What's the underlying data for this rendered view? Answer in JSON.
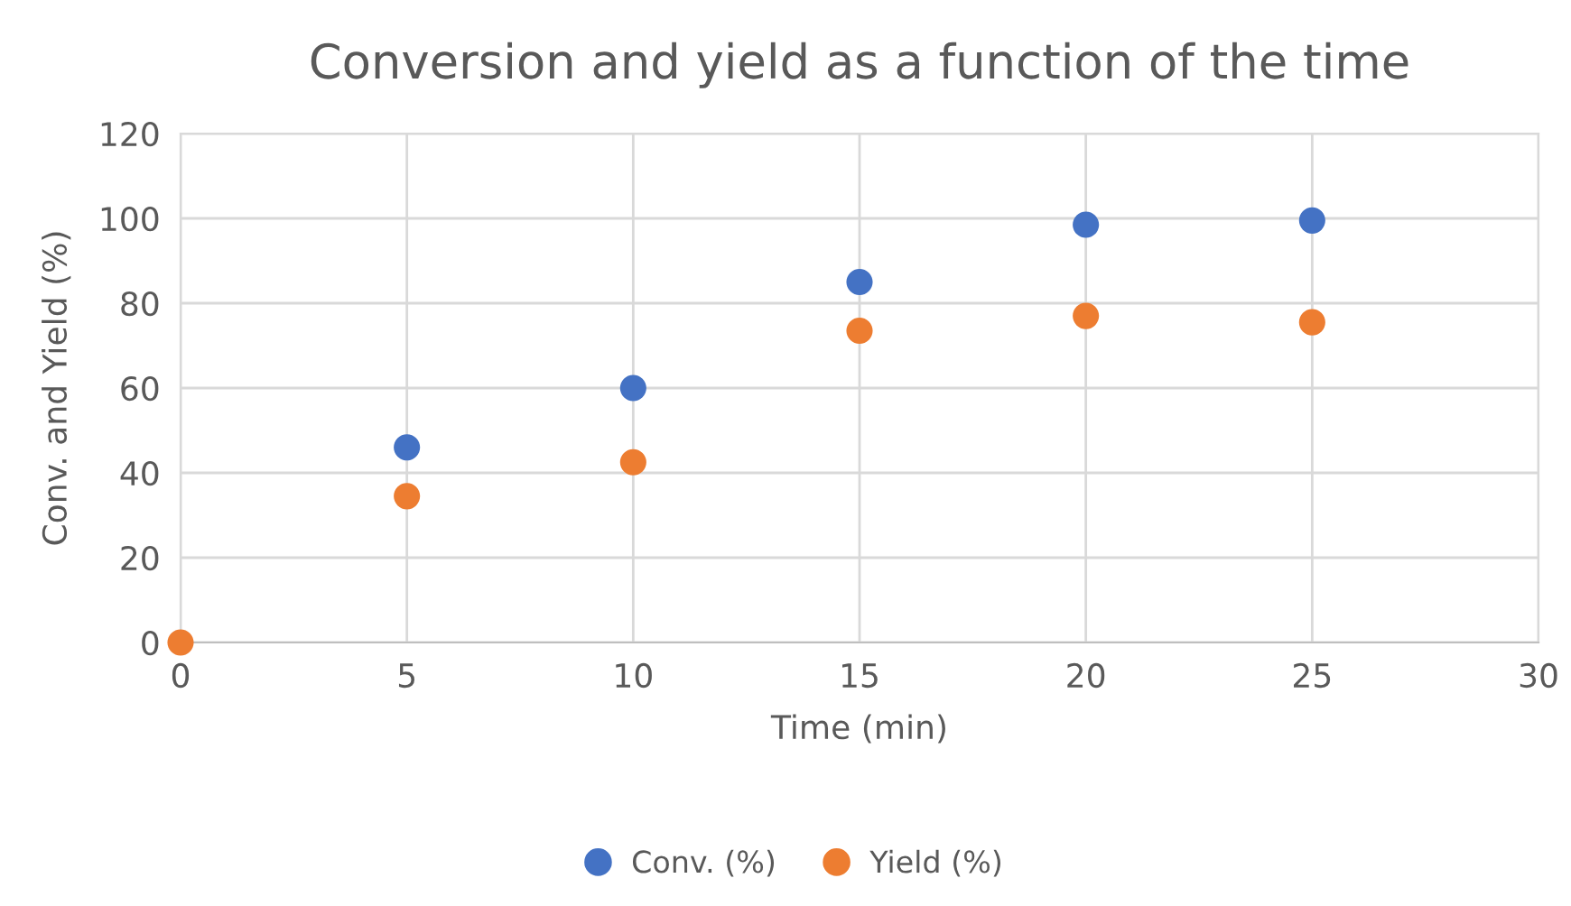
{
  "chart_data": {
    "type": "scatter",
    "title": "Conversion and yield as a function of the time",
    "xlabel": "Time (min)",
    "ylabel": "Conv. and Yield (%)",
    "x": [
      0,
      5,
      10,
      15,
      20,
      25
    ],
    "series": [
      {
        "name": "Conv. (%)",
        "color": "#4472c4",
        "values": [
          null,
          46,
          60,
          85,
          98.5,
          99.5
        ]
      },
      {
        "name": "Yield (%)",
        "color": "#ed7d31",
        "values": [
          0,
          34.5,
          42.5,
          73.5,
          77,
          75.5
        ]
      }
    ],
    "xlim": [
      0,
      30
    ],
    "xticks": [
      0,
      5,
      10,
      15,
      20,
      25,
      30
    ],
    "ylim": [
      0,
      120
    ],
    "yticks": [
      0,
      20,
      40,
      60,
      80,
      100,
      120
    ],
    "grid": true,
    "legend": "bottom",
    "marker": "circle"
  }
}
